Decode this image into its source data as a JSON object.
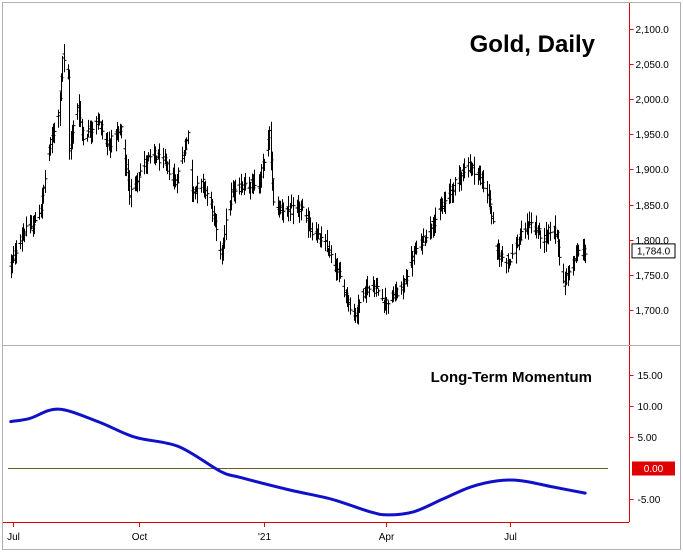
{
  "chart_data": [
    {
      "type": "ohlc",
      "title": "Gold, Daily",
      "ylim": [
        1660,
        2130
      ],
      "y_ticks": [
        {
          "value": 2100,
          "label": "2,100.0"
        },
        {
          "value": 2050,
          "label": "2,050.0"
        },
        {
          "value": 2000,
          "label": "2,000.0"
        },
        {
          "value": 1950,
          "label": "1,950.0"
        },
        {
          "value": 1900,
          "label": "1,900.0"
        },
        {
          "value": 1850,
          "label": "1,850.0"
        },
        {
          "value": 1800,
          "label": "1,800.0"
        },
        {
          "value": 1750,
          "label": "1,750.0"
        },
        {
          "value": 1700,
          "label": "1,700.0"
        }
      ],
      "last_value_label": "1,784.0",
      "last_value": 1784,
      "color": "#000000",
      "anchors": [
        [
          "2020-06-29",
          1765
        ],
        [
          "2020-07-08",
          1810
        ],
        [
          "2020-07-15",
          1820
        ],
        [
          "2020-07-21",
          1845
        ],
        [
          "2020-07-27",
          1930
        ],
        [
          "2020-08-03",
          1980
        ],
        [
          "2020-08-06",
          2060
        ],
        [
          "2020-08-10",
          2030
        ],
        [
          "2020-08-11",
          1930
        ],
        [
          "2020-08-17",
          1990
        ],
        [
          "2020-08-21",
          1945
        ],
        [
          "2020-09-01",
          1970
        ],
        [
          "2020-09-08",
          1935
        ],
        [
          "2020-09-18",
          1955
        ],
        [
          "2020-09-24",
          1865
        ],
        [
          "2020-10-05",
          1910
        ],
        [
          "2020-10-12",
          1920
        ],
        [
          "2020-10-20",
          1910
        ],
        [
          "2020-10-28",
          1880
        ],
        [
          "2020-11-06",
          1950
        ],
        [
          "2020-11-09",
          1870
        ],
        [
          "2020-11-17",
          1880
        ],
        [
          "2020-11-23",
          1850
        ],
        [
          "2020-11-30",
          1780
        ],
        [
          "2020-12-08",
          1865
        ],
        [
          "2020-12-17",
          1880
        ],
        [
          "2020-12-28",
          1880
        ],
        [
          "2021-01-05",
          1950
        ],
        [
          "2021-01-08",
          1850
        ],
        [
          "2021-01-18",
          1840
        ],
        [
          "2021-01-28",
          1845
        ],
        [
          "2021-02-04",
          1815
        ],
        [
          "2021-02-16",
          1790
        ],
        [
          "2021-02-26",
          1745
        ],
        [
          "2021-03-08",
          1690
        ],
        [
          "2021-03-16",
          1730
        ],
        [
          "2021-03-25",
          1730
        ],
        [
          "2021-03-31",
          1710
        ],
        [
          "2021-04-12",
          1730
        ],
        [
          "2021-04-21",
          1780
        ],
        [
          "2021-05-07",
          1830
        ],
        [
          "2021-05-17",
          1865
        ],
        [
          "2021-05-27",
          1900
        ],
        [
          "2021-06-01",
          1905
        ],
        [
          "2021-06-07",
          1895
        ],
        [
          "2021-06-15",
          1860
        ],
        [
          "2021-06-21",
          1780
        ],
        [
          "2021-06-30",
          1770
        ],
        [
          "2021-07-06",
          1795
        ],
        [
          "2021-07-15",
          1825
        ],
        [
          "2021-07-26",
          1800
        ],
        [
          "2021-07-30",
          1815
        ],
        [
          "2021-08-04",
          1810
        ],
        [
          "2021-08-09",
          1735
        ],
        [
          "2021-08-12",
          1755
        ],
        [
          "2021-08-20",
          1783
        ],
        [
          "2021-08-25",
          1784
        ]
      ]
    },
    {
      "type": "line",
      "title": "Long-Term Momentum",
      "ylim": [
        -8,
        19
      ],
      "y_ticks": [
        {
          "value": 15,
          "label": "15.00"
        },
        {
          "value": 10,
          "label": "10.00"
        },
        {
          "value": 5,
          "label": "5.00"
        },
        {
          "value": -5,
          "label": "-5.00"
        }
      ],
      "zero_line": {
        "value": 0,
        "label": "0.00",
        "color": "#e00000"
      },
      "color": "#1010c8",
      "x": [
        "2020-06-29",
        "2020-07-13",
        "2020-08-03",
        "2020-09-01",
        "2020-09-28",
        "2020-10-30",
        "2020-11-30",
        "2020-12-15",
        "2021-01-20",
        "2021-02-20",
        "2021-03-20",
        "2021-04-02",
        "2021-04-21",
        "2021-05-12",
        "2021-06-02",
        "2021-06-22",
        "2021-07-09",
        "2021-08-01",
        "2021-08-25"
      ],
      "values": [
        7.5,
        8.0,
        9.5,
        7.5,
        5.0,
        3.5,
        -0.5,
        -1.5,
        -3.5,
        -5.0,
        -7.0,
        -7.5,
        -7.0,
        -5.0,
        -3.0,
        -2.0,
        -2.0,
        -3.0,
        -4.0
      ]
    }
  ],
  "x_axis": {
    "ticks": [
      {
        "date": "2020-07-01",
        "label": "Jul"
      },
      {
        "date": "2020-10-01",
        "label": "Oct"
      },
      {
        "date": "2021-01-01",
        "label": "'21"
      },
      {
        "date": "2021-04-01",
        "label": "Apr"
      },
      {
        "date": "2021-07-01",
        "label": "Jul"
      }
    ],
    "range": [
      "2020-06-27",
      "2021-09-21"
    ]
  },
  "axis_color": "#e00000",
  "panel_border_color": "#b0b0b0"
}
